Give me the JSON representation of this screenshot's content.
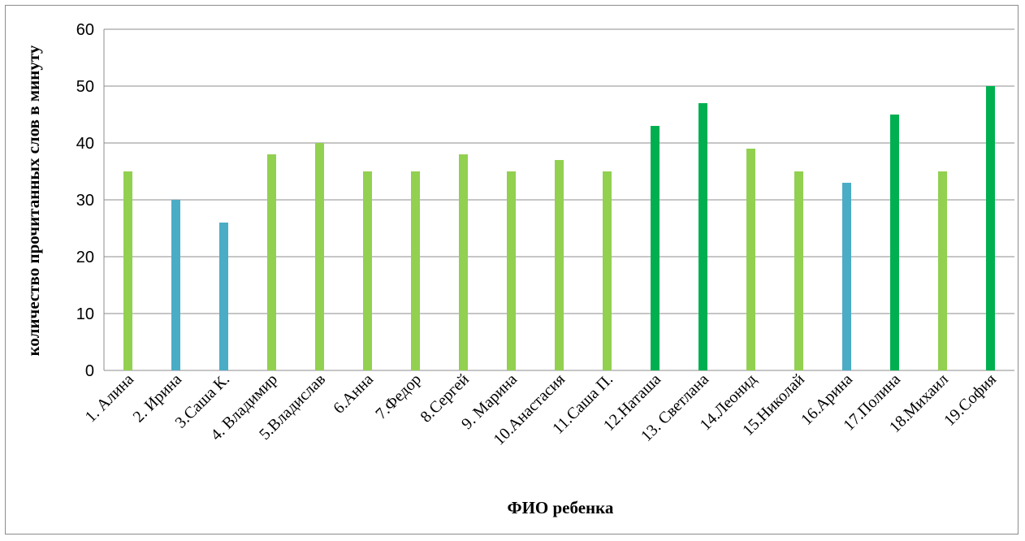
{
  "chart_data": {
    "type": "bar",
    "title": "",
    "xlabel": "ФИО ребенка",
    "ylabel": "количество прочитанных слов в минуту",
    "ylim": [
      0,
      60
    ],
    "yticks": [
      0,
      10,
      20,
      30,
      40,
      50,
      60
    ],
    "grid": "horizontal",
    "legend": "none",
    "colors": {
      "light_green": "#92d050",
      "blue": "#4bacc6",
      "dark_green": "#00b050"
    },
    "categories": [
      "1. Алина",
      "2. Ирина",
      "3.Саша К.",
      "4. Владимир",
      "5.Владислав",
      "6.Анна",
      "7.Федор",
      "8.Сергей",
      "9. Марина",
      "10.Анастасия",
      "11.Саша П.",
      "12.Наташа",
      "13. Светлана",
      "14.Леонид",
      "15.Николай",
      "16.Арина",
      "17.Полина",
      "18.Михаил",
      "19.София"
    ],
    "values": [
      35,
      30,
      26,
      38,
      40,
      35,
      35,
      38,
      35,
      37,
      35,
      43,
      47,
      39,
      35,
      33,
      45,
      35,
      50
    ],
    "bar_colors": [
      "#92d050",
      "#4bacc6",
      "#4bacc6",
      "#92d050",
      "#92d050",
      "#92d050",
      "#92d050",
      "#92d050",
      "#92d050",
      "#92d050",
      "#92d050",
      "#00b050",
      "#00b050",
      "#92d050",
      "#92d050",
      "#4bacc6",
      "#00b050",
      "#92d050",
      "#00b050"
    ]
  }
}
